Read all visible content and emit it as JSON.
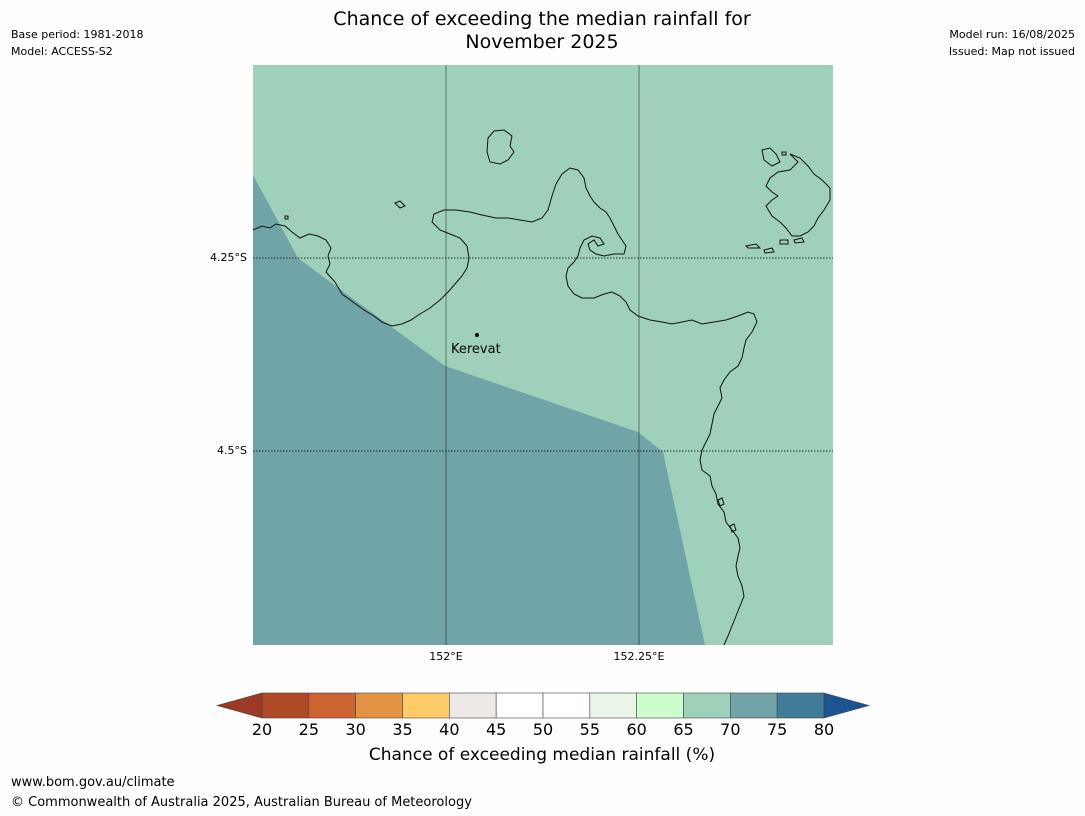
{
  "title": {
    "line1": "Chance of exceeding the median rainfall for",
    "line2": "November 2025"
  },
  "meta_left": {
    "base_period": "Base period: 1981-2018",
    "model": "Model: ACCESS-S2"
  },
  "meta_right": {
    "model_run": "Model run: 16/08/2025",
    "issued": "Issued: Map not issued"
  },
  "map": {
    "lat_labels": [
      "4.25°S",
      "4.5°S"
    ],
    "lon_labels": [
      "152°E",
      "152.25°E"
    ],
    "place": "Kerevat",
    "background_color": "#9fd0b9",
    "region_color": "#70a4a8",
    "region_category": "70-75"
  },
  "colorbar": {
    "label": "Chance of exceeding median rainfall (%)",
    "ticks": [
      "20",
      "25",
      "30",
      "35",
      "40",
      "45",
      "50",
      "55",
      "60",
      "65",
      "70",
      "75",
      "80"
    ],
    "colors": [
      "#ae4a25",
      "#cd6430",
      "#e29343",
      "#fecb66",
      "#ede9e6",
      "#ffffff",
      "#ffffff",
      "#e8f5e8",
      "#ccfdcc",
      "#9fd0b9",
      "#70a4a8",
      "#417b9a"
    ],
    "under_color": "#9c3a24",
    "over_color": "#1b5490"
  },
  "footer": {
    "url": "www.bom.gov.au/climate",
    "copyright": "© Commonwealth of Australia 2025, Australian Bureau of Meteorology"
  }
}
